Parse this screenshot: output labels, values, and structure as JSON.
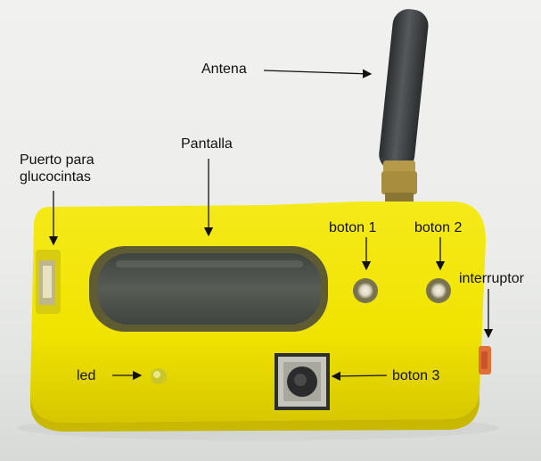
{
  "labels": {
    "antena": "Antena",
    "pantalla": "Pantalla",
    "puerto_line1": "Puerto para",
    "puerto_line2": "glucocintas",
    "boton1": "boton 1",
    "boton2": "boton 2",
    "interruptor": "interruptor",
    "led": "led",
    "boton3": "boton 3"
  },
  "colors": {
    "device_body": "#f2e600",
    "device_shadow": "#d9c800",
    "antenna": "#3a3d3f",
    "screen_bezel": "#6b6a3a",
    "screen_glass": "#4a4e48",
    "switch": "#e0703a",
    "annotation": "#111111"
  }
}
